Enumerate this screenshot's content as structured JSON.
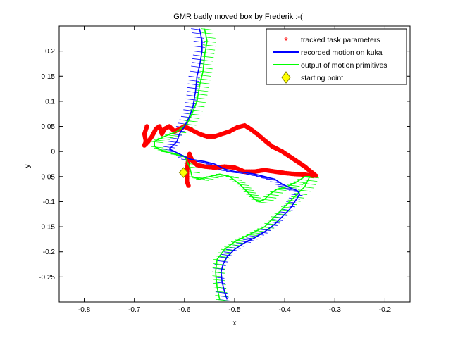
{
  "chart_data": {
    "type": "line",
    "title": "GMR badly moved box by Frederik :-(",
    "xlabel": "x",
    "ylabel": "y",
    "xlim": [
      -0.85,
      -0.15
    ],
    "ylim": [
      -0.3,
      0.25
    ],
    "xticks": [
      -0.8,
      -0.7,
      -0.6,
      -0.5,
      -0.4,
      -0.3,
      -0.2
    ],
    "xtick_labels": [
      "-0.8",
      "-0.7",
      "-0.6",
      "-0.5",
      "-0.4",
      "-0.3",
      "-0.2"
    ],
    "yticks": [
      -0.25,
      -0.2,
      -0.15,
      -0.1,
      -0.05,
      0,
      0.05,
      0.1,
      0.15,
      0.2
    ],
    "ytick_labels": [
      "-0.25",
      "-0.2",
      "-0.15",
      "-0.1",
      "-0.05",
      "0",
      "0.05",
      "0.1",
      "0.15",
      "0.2"
    ],
    "grid": false,
    "legend_position": "top-right",
    "legend": [
      {
        "label": "tracked task parameters",
        "color": "#ff0000",
        "marker": "asterisk"
      },
      {
        "label": "recorded motion on kuka",
        "color": "#0000ff",
        "marker": "line"
      },
      {
        "label": "output of motion primitives",
        "color": "#00ff00",
        "marker": "line"
      },
      {
        "label": "starting point",
        "color": "#ffff00",
        "marker": "diamond"
      }
    ],
    "series": [
      {
        "name": "recorded motion on kuka",
        "color": "#0000ff",
        "points": [
          [
            -0.57,
            0.245
          ],
          [
            -0.565,
            0.22
          ],
          [
            -0.565,
            0.2
          ],
          [
            -0.57,
            0.17
          ],
          [
            -0.575,
            0.15
          ],
          [
            -0.578,
            0.12
          ],
          [
            -0.583,
            0.09
          ],
          [
            -0.59,
            0.07
          ],
          [
            -0.6,
            0.05
          ],
          [
            -0.61,
            0.035
          ],
          [
            -0.615,
            0.02
          ],
          [
            -0.63,
            0.005
          ],
          [
            -0.61,
            -0.005
          ],
          [
            -0.59,
            -0.015
          ],
          [
            -0.56,
            -0.02
          ],
          [
            -0.54,
            -0.025
          ],
          [
            -0.52,
            -0.035
          ],
          [
            -0.5,
            -0.04
          ],
          [
            -0.48,
            -0.042
          ],
          [
            -0.46,
            -0.045
          ],
          [
            -0.44,
            -0.05
          ],
          [
            -0.42,
            -0.055
          ],
          [
            -0.405,
            -0.065
          ],
          [
            -0.39,
            -0.072
          ],
          [
            -0.375,
            -0.078
          ],
          [
            -0.37,
            -0.085
          ],
          [
            -0.38,
            -0.1
          ],
          [
            -0.39,
            -0.115
          ],
          [
            -0.405,
            -0.13
          ],
          [
            -0.42,
            -0.145
          ],
          [
            -0.44,
            -0.16
          ],
          [
            -0.46,
            -0.172
          ],
          [
            -0.48,
            -0.182
          ],
          [
            -0.5,
            -0.195
          ],
          [
            -0.515,
            -0.21
          ],
          [
            -0.523,
            -0.225
          ],
          [
            -0.527,
            -0.24
          ],
          [
            -0.525,
            -0.26
          ],
          [
            -0.52,
            -0.28
          ],
          [
            -0.515,
            -0.295
          ]
        ]
      },
      {
        "name": "output of motion primitives",
        "color": "#00ff00",
        "points": [
          [
            -0.56,
            0.245
          ],
          [
            -0.555,
            0.22
          ],
          [
            -0.56,
            0.19
          ],
          [
            -0.563,
            0.16
          ],
          [
            -0.57,
            0.13
          ],
          [
            -0.575,
            0.1
          ],
          [
            -0.585,
            0.075
          ],
          [
            -0.595,
            0.055
          ],
          [
            -0.615,
            0.04
          ],
          [
            -0.64,
            0.03
          ],
          [
            -0.66,
            0.02
          ],
          [
            -0.66,
            0.01
          ],
          [
            -0.64,
            0.0
          ],
          [
            -0.62,
            -0.005
          ],
          [
            -0.6,
            -0.01
          ],
          [
            -0.59,
            -0.03
          ],
          [
            -0.585,
            -0.05
          ],
          [
            -0.57,
            -0.055
          ],
          [
            -0.55,
            -0.05
          ],
          [
            -0.53,
            -0.045
          ],
          [
            -0.51,
            -0.05
          ],
          [
            -0.49,
            -0.065
          ],
          [
            -0.475,
            -0.08
          ],
          [
            -0.46,
            -0.095
          ],
          [
            -0.45,
            -0.1
          ],
          [
            -0.44,
            -0.095
          ],
          [
            -0.43,
            -0.085
          ],
          [
            -0.415,
            -0.075
          ],
          [
            -0.395,
            -0.07
          ],
          [
            -0.375,
            -0.06
          ],
          [
            -0.36,
            -0.05
          ],
          [
            -0.35,
            -0.05
          ],
          [
            -0.36,
            -0.07
          ],
          [
            -0.38,
            -0.09
          ],
          [
            -0.4,
            -0.11
          ],
          [
            -0.42,
            -0.13
          ],
          [
            -0.44,
            -0.15
          ],
          [
            -0.47,
            -0.165
          ],
          [
            -0.5,
            -0.18
          ],
          [
            -0.52,
            -0.195
          ],
          [
            -0.535,
            -0.215
          ],
          [
            -0.538,
            -0.24
          ],
          [
            -0.535,
            -0.27
          ],
          [
            -0.53,
            -0.295
          ]
        ]
      },
      {
        "name": "tracked task parameters",
        "color": "#ff0000",
        "points": [
          [
            -0.675,
            0.05
          ],
          [
            -0.68,
            0.035
          ],
          [
            -0.677,
            0.02
          ],
          [
            -0.68,
            0.012
          ],
          [
            -0.672,
            0.02
          ],
          [
            -0.665,
            0.03
          ],
          [
            -0.657,
            0.045
          ],
          [
            -0.65,
            0.05
          ],
          [
            -0.645,
            0.035
          ],
          [
            -0.64,
            0.045
          ],
          [
            -0.63,
            0.05
          ],
          [
            -0.62,
            0.04
          ],
          [
            -0.61,
            0.045
          ],
          [
            -0.6,
            0.05
          ],
          [
            -0.59,
            0.045
          ],
          [
            -0.58,
            0.04
          ],
          [
            -0.57,
            0.035
          ],
          [
            -0.555,
            0.03
          ],
          [
            -0.54,
            0.03
          ],
          [
            -0.525,
            0.035
          ],
          [
            -0.51,
            0.04
          ],
          [
            -0.495,
            0.048
          ],
          [
            -0.48,
            0.052
          ],
          [
            -0.47,
            0.046
          ],
          [
            -0.455,
            0.035
          ],
          [
            -0.44,
            0.022
          ],
          [
            -0.425,
            0.01
          ],
          [
            -0.405,
            0.0
          ],
          [
            -0.39,
            -0.01
          ],
          [
            -0.375,
            -0.02
          ],
          [
            -0.36,
            -0.03
          ],
          [
            -0.348,
            -0.04
          ],
          [
            -0.338,
            -0.048
          ],
          [
            -0.345,
            -0.048
          ],
          [
            -0.36,
            -0.046
          ],
          [
            -0.38,
            -0.045
          ],
          [
            -0.4,
            -0.043
          ],
          [
            -0.42,
            -0.04
          ],
          [
            -0.44,
            -0.037
          ],
          [
            -0.46,
            -0.04
          ],
          [
            -0.48,
            -0.04
          ],
          [
            -0.5,
            -0.032
          ],
          [
            -0.52,
            -0.03
          ],
          [
            -0.54,
            -0.032
          ],
          [
            -0.56,
            -0.03
          ],
          [
            -0.575,
            -0.027
          ],
          [
            -0.585,
            -0.018
          ],
          [
            -0.59,
            -0.005
          ],
          [
            -0.593,
            -0.02
          ],
          [
            -0.595,
            -0.04
          ],
          [
            -0.595,
            -0.06
          ],
          [
            -0.592,
            -0.068
          ]
        ]
      }
    ],
    "starting_point": [
      -0.602,
      -0.042
    ]
  }
}
